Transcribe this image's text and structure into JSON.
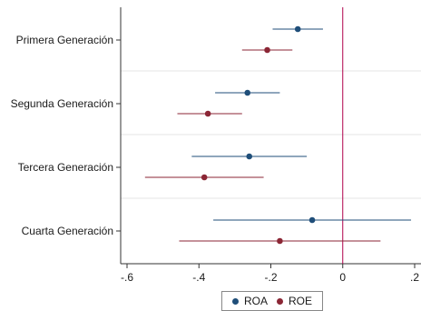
{
  "chart_data": {
    "type": "coefficient-plot",
    "categories": [
      "Primera Generación",
      "Segunda Generación",
      "Tercera Generación",
      "Cuarta Generación"
    ],
    "series": [
      {
        "name": "ROA",
        "color": "#1f4e79",
        "estimates": [
          -0.125,
          -0.265,
          -0.26,
          -0.085
        ],
        "ci_low": [
          -0.195,
          -0.355,
          -0.42,
          -0.36
        ],
        "ci_high": [
          -0.055,
          -0.175,
          -0.1,
          0.19
        ]
      },
      {
        "name": "ROE",
        "color": "#8b2635",
        "estimates": [
          -0.21,
          -0.375,
          -0.385,
          -0.175
        ],
        "ci_low": [
          -0.28,
          -0.46,
          -0.55,
          -0.455
        ],
        "ci_high": [
          -0.14,
          -0.28,
          -0.22,
          0.105
        ]
      }
    ],
    "x_ticks": [
      -0.6,
      -0.4,
      -0.2,
      0,
      0.2
    ],
    "x_tick_labels": [
      "-.6",
      "-.4",
      "-.2",
      "0",
      ".2"
    ],
    "xlim": [
      -0.62,
      0.22
    ],
    "reference_line": {
      "x": 0,
      "color": "#b0004a"
    },
    "legend_position": "bottom"
  }
}
